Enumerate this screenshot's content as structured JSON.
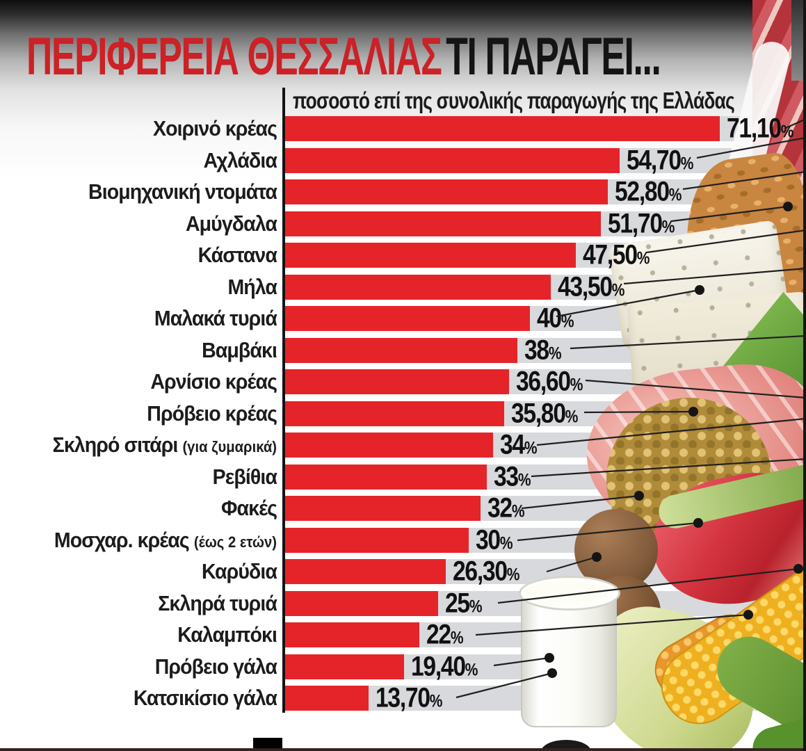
{
  "header": {
    "title_red": "ΠΕΡΙΦΕΡΕΙΑ ΘΕΣΣΑΛΙΑΣ",
    "title_black": "ΤΙ ΠΑΡΑΓΕΙ...",
    "subtitle": "ποσοστό επί της συνολικής παραγωγής της Ελλάδας"
  },
  "chart_data": {
    "type": "bar",
    "orientation": "horizontal",
    "title": "ΠΕΡΙΦΕΡΕΙΑ ΘΕΣΣΑΛΙΑΣ ΤΙ ΠΑΡΑΓΕΙ...",
    "subtitle": "ποσοστό επί της συνολικής παραγωγής της Ελλάδας",
    "unit": "%",
    "value_suffix": "%",
    "decimal_separator": ",",
    "xlim": [
      0,
      75
    ],
    "grid": false,
    "legend": false,
    "items": [
      {
        "label": "Χοιρινό κρέας",
        "note": "",
        "value": 71.1,
        "display": "71,10"
      },
      {
        "label": "Αχλάδια",
        "note": "",
        "value": 54.7,
        "display": "54,70"
      },
      {
        "label": "Βιομηχανική ντομάτα",
        "note": "",
        "value": 52.8,
        "display": "52,80"
      },
      {
        "label": "Αμύγδαλα",
        "note": "",
        "value": 51.7,
        "display": "51,70"
      },
      {
        "label": "Κάστανα",
        "note": "",
        "value": 47.5,
        "display": "47,50"
      },
      {
        "label": "Μήλα",
        "note": "",
        "value": 43.5,
        "display": "43,50"
      },
      {
        "label": "Μαλακά τυριά",
        "note": "",
        "value": 40.0,
        "display": "40"
      },
      {
        "label": "Βαμβάκι",
        "note": "",
        "value": 38.0,
        "display": "38"
      },
      {
        "label": "Αρνίσιο κρέας",
        "note": "",
        "value": 36.6,
        "display": "36,60"
      },
      {
        "label": "Πρόβειο κρέας",
        "note": "",
        "value": 35.8,
        "display": "35,80"
      },
      {
        "label": "Σκληρό σιτάρι",
        "note": "(για ζυμαρικά)",
        "value": 34.0,
        "display": "34"
      },
      {
        "label": "Ρεβίθια",
        "note": "",
        "value": 33.0,
        "display": "33"
      },
      {
        "label": "Φακές",
        "note": "",
        "value": 32.0,
        "display": "32"
      },
      {
        "label": "Μοσχαρ. κρέας",
        "note": "(έως 2 ετών)",
        "value": 30.0,
        "display": "30"
      },
      {
        "label": "Καρύδια",
        "note": "",
        "value": 26.3,
        "display": "26,30"
      },
      {
        "label": "Σκληρά τυριά",
        "note": "",
        "value": 25.0,
        "display": "25"
      },
      {
        "label": "Καλαμπόκι",
        "note": "",
        "value": 22.0,
        "display": "22"
      },
      {
        "label": "Πρόβειο γάλα",
        "note": "",
        "value": 19.4,
        "display": "19,40"
      },
      {
        "label": "Κατσικίσιο γάλα",
        "note": "",
        "value": 13.7,
        "display": "13,70"
      }
    ]
  },
  "colors": {
    "bar": "#e5242a",
    "track": "#d8d9dc",
    "title_red": "#cb2127",
    "text": "#1c1c1c",
    "leader_line": "#1f1f1f"
  },
  "collage": {
    "photos": [
      "raw-pork-meat",
      "almonds",
      "feta-cheese",
      "green-leaf",
      "pork-meat",
      "chickpeas-pile",
      "walnuts",
      "beef-meat",
      "corn-cobs",
      "corn-husks",
      "milk-glass"
    ]
  }
}
